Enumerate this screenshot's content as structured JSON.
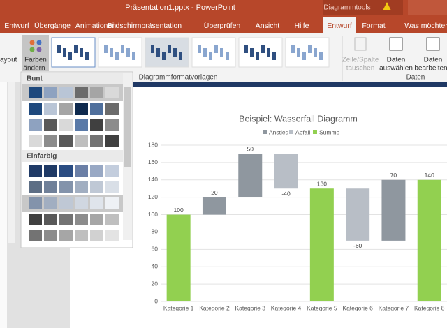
{
  "window": {
    "title": "Präsentation1.pptx  -  PowerPoint",
    "context_tab_group": "Diagrammtools"
  },
  "tabs": [
    "Entwurf",
    "Übergänge",
    "Animationen",
    "Bildschirmpräsentation",
    "Überprüfen",
    "Ansicht",
    "Hilfe",
    "Entwurf",
    "Format",
    "Was möchter"
  ],
  "ribbon": {
    "partial_button": "ayout",
    "colors_button": [
      "Farben",
      "ändern"
    ],
    "group_styles": "Diagrammformatvorlagen",
    "switch_button": [
      "Zeile/Spalte",
      "tauschen"
    ],
    "select_button": [
      "Daten",
      "auswählen"
    ],
    "edit_button": [
      "Daten",
      "bearbeiten"
    ],
    "group_data": "Daten"
  },
  "color_menu": {
    "sections": [
      "Bunt",
      "Einfarbig"
    ]
  },
  "chart_data": {
    "type": "waterfall",
    "title": "Beispiel: Wasserfall Diagramm",
    "series": [
      {
        "name": "Anstieg",
        "color": "#8f979f"
      },
      {
        "name": "Abfall",
        "color": "#b8bec6"
      },
      {
        "name": "Summe",
        "color": "#92d050"
      }
    ],
    "categories": [
      "Kategorie 1",
      "Kategorie 2",
      "Kategorie 3",
      "Kategorie 4",
      "Kategorie 5",
      "Kategorie 6",
      "Kategorie 7",
      "Kategorie 8"
    ],
    "values": [
      100,
      20,
      50,
      -40,
      130,
      -60,
      70,
      140
    ],
    "bar_series": [
      2,
      0,
      0,
      1,
      2,
      1,
      0,
      2
    ],
    "ylim": [
      0,
      180
    ],
    "yticks": [
      0,
      20,
      40,
      60,
      80,
      100,
      120,
      140,
      160,
      180
    ],
    "grid": true
  }
}
